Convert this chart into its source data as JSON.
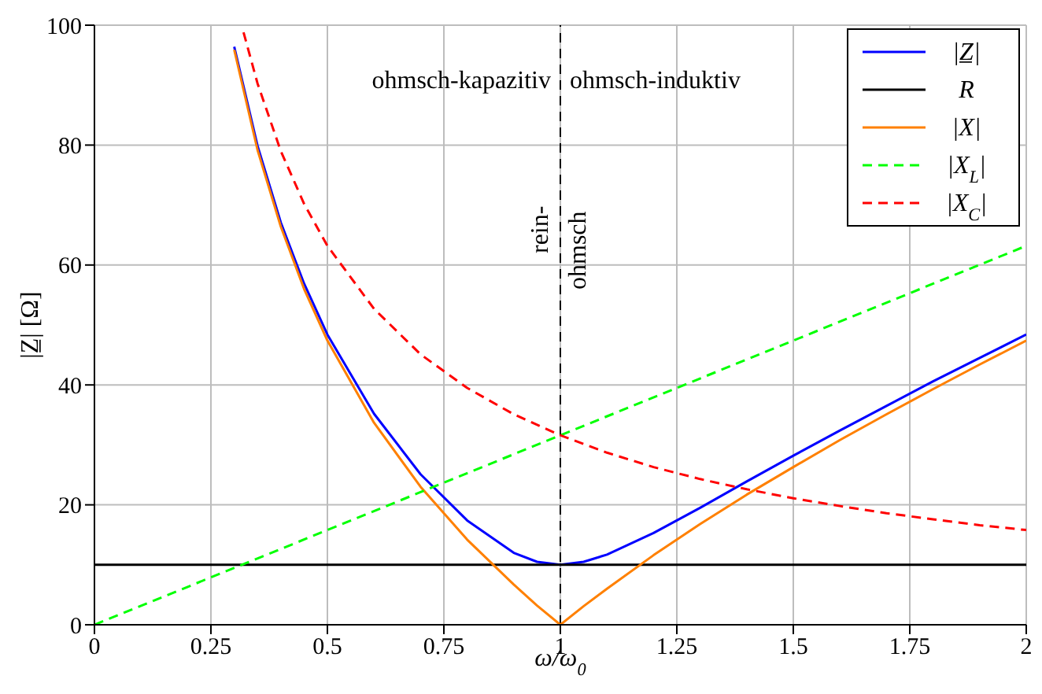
{
  "chart_data": {
    "type": "line",
    "xlabel": "ω/ω$_{0}$",
    "ylabel": "|Z̲| [Ω]",
    "xlim": [
      0,
      2
    ],
    "ylim": [
      0,
      100
    ],
    "xticks": [
      0,
      0.25,
      0.5,
      0.75,
      1,
      1.25,
      1.5,
      1.75,
      2
    ],
    "yticks": [
      0,
      20,
      40,
      60,
      80,
      100
    ],
    "grid": true,
    "legend": "top right",
    "marker": "none",
    "series": [
      {
        "name": "|Z̲|",
        "color": "#0000ff",
        "line_style": "solid",
        "x": [
          0.3,
          0.35,
          0.4,
          0.45,
          0.5,
          0.6,
          0.7,
          0.8,
          0.9,
          0.95,
          1,
          1.05,
          1.1,
          1.2,
          1.3,
          1.4,
          1.5,
          1.6,
          1.7,
          1.8,
          1.9,
          2
        ],
        "values": [
          96.4,
          79.9,
          67.1,
          56.9,
          48.4,
          35.2,
          25.1,
          17.4,
          12.0,
          10.5,
          10,
          10.5,
          11.7,
          15.3,
          19.5,
          23.9,
          28.2,
          32.4,
          36.5,
          40.6,
          44.5,
          48.4
        ]
      },
      {
        "name": "R",
        "color": "#000000",
        "line_style": "solid",
        "x": [
          0,
          2
        ],
        "values": [
          10,
          10
        ]
      },
      {
        "name": "|X|",
        "color": "#ff8000",
        "line_style": "solid",
        "x": [
          0.3,
          0.35,
          0.4,
          0.45,
          0.5,
          0.6,
          0.7,
          0.8,
          0.9,
          0.95,
          1,
          1.05,
          1.1,
          1.2,
          1.3,
          1.4,
          1.5,
          1.6,
          1.7,
          1.8,
          1.9,
          2
        ],
        "values": [
          95.9,
          79.2,
          66.4,
          56.0,
          47.4,
          33.7,
          23.0,
          14.2,
          6.7,
          3.2,
          0,
          3.1,
          6.0,
          11.6,
          16.8,
          21.7,
          26.3,
          30.8,
          35.1,
          39.3,
          43.4,
          47.4
        ]
      },
      {
        "name": "|X$_{L}$|",
        "color": "#00ff00",
        "line_style": "dashed",
        "x": [
          0,
          2
        ],
        "values": [
          0,
          63.2
        ]
      },
      {
        "name": "|X$_{C}$|",
        "color": "#ff0000",
        "line_style": "dashed",
        "x": [
          0.32,
          0.35,
          0.4,
          0.45,
          0.5,
          0.6,
          0.7,
          0.8,
          0.9,
          1,
          1.1,
          1.2,
          1.3,
          1.4,
          1.5,
          1.6,
          1.7,
          1.8,
          1.9,
          2
        ],
        "values": [
          98.8,
          90.3,
          79,
          70.2,
          63.2,
          52.7,
          45.1,
          39.5,
          35.1,
          31.6,
          28.7,
          26.3,
          24.3,
          22.6,
          21.1,
          19.8,
          18.6,
          17.6,
          16.6,
          15.8
        ]
      }
    ],
    "ref_lines": [
      {
        "axis": "x",
        "value": 1,
        "color": "#000000",
        "line_style": "dashed"
      }
    ],
    "annotations": [
      "ohmsch-kapazitiv",
      "ohmsch-induktiv",
      "rein-",
      "ohmsch"
    ]
  }
}
